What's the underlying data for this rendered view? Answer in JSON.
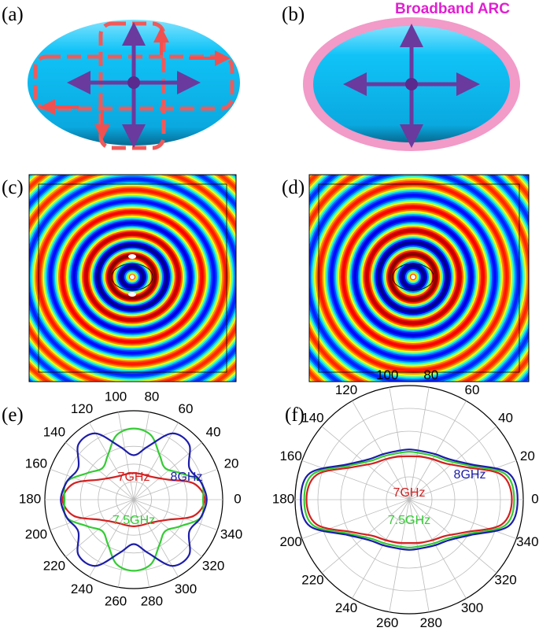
{
  "labels": [
    "(a)",
    "(b)",
    "(c)",
    "(d)",
    "(e)",
    "(f)"
  ],
  "annotation": "Broadband ARC",
  "chart_data": [
    {
      "type": "polar",
      "rlim": [
        0,
        1
      ],
      "rticks": [
        0.2,
        0.4,
        0.6,
        0.8,
        1
      ],
      "xticks": [
        0,
        20,
        40,
        60,
        80,
        100,
        120,
        140,
        160,
        180,
        200,
        220,
        240,
        260,
        280,
        300,
        320,
        340
      ],
      "x": [
        0,
        15,
        30,
        45,
        60,
        75,
        90,
        105,
        120,
        135,
        150,
        165,
        180,
        195,
        210,
        225,
        240,
        255,
        270,
        285,
        300,
        315,
        330,
        345
      ],
      "series": [
        {
          "name": "7GHz",
          "color": "#d42020",
          "values": [
            0.8,
            0.7,
            0.45,
            0.35,
            0.31,
            0.3,
            0.3,
            0.3,
            0.31,
            0.35,
            0.45,
            0.7,
            0.8,
            0.7,
            0.45,
            0.35,
            0.31,
            0.3,
            0.3,
            0.3,
            0.31,
            0.35,
            0.45,
            0.7
          ]
        },
        {
          "name": "7.5GHz",
          "color": "#33cc33",
          "values": [
            0.78,
            0.78,
            0.6,
            0.5,
            0.58,
            0.75,
            0.8,
            0.75,
            0.58,
            0.5,
            0.6,
            0.78,
            0.78,
            0.78,
            0.6,
            0.5,
            0.58,
            0.75,
            0.8,
            0.75,
            0.58,
            0.5,
            0.6,
            0.78
          ]
        },
        {
          "name": "8GHz",
          "color": "#1c1caa",
          "values": [
            0.82,
            0.78,
            0.72,
            0.88,
            0.86,
            0.62,
            0.5,
            0.62,
            0.86,
            0.88,
            0.72,
            0.78,
            0.82,
            0.78,
            0.72,
            0.88,
            0.86,
            0.62,
            0.5,
            0.62,
            0.86,
            0.88,
            0.72,
            0.78
          ]
        }
      ]
    },
    {
      "type": "polar",
      "rlim": [
        0,
        1
      ],
      "rticks": [
        0.2,
        0.4,
        0.6,
        0.8,
        1
      ],
      "xticks": [
        0,
        20,
        40,
        60,
        80,
        100,
        120,
        140,
        160,
        180,
        200,
        220,
        240,
        260,
        280,
        300,
        320,
        340
      ],
      "x": [
        0,
        15,
        30,
        45,
        60,
        75,
        90,
        105,
        120,
        135,
        150,
        165,
        180,
        195,
        210,
        225,
        240,
        255,
        270,
        285,
        300,
        315,
        330,
        345
      ],
      "series": [
        {
          "name": "7GHz",
          "color": "#d42020",
          "values": [
            0.9,
            0.84,
            0.57,
            0.45,
            0.41,
            0.39,
            0.38,
            0.39,
            0.41,
            0.45,
            0.57,
            0.84,
            0.9,
            0.84,
            0.57,
            0.45,
            0.41,
            0.39,
            0.38,
            0.39,
            0.41,
            0.45,
            0.57,
            0.84
          ]
        },
        {
          "name": "7.5GHz",
          "color": "#33cc33",
          "values": [
            0.92,
            0.87,
            0.6,
            0.48,
            0.44,
            0.42,
            0.42,
            0.42,
            0.44,
            0.48,
            0.6,
            0.87,
            0.92,
            0.87,
            0.6,
            0.48,
            0.44,
            0.42,
            0.42,
            0.42,
            0.44,
            0.48,
            0.6,
            0.87
          ]
        },
        {
          "name": "8GHz",
          "color": "#1c1caa",
          "values": [
            0.95,
            0.9,
            0.62,
            0.5,
            0.46,
            0.44,
            0.44,
            0.44,
            0.46,
            0.5,
            0.62,
            0.9,
            0.95,
            0.9,
            0.62,
            0.5,
            0.46,
            0.44,
            0.44,
            0.44,
            0.46,
            0.5,
            0.62,
            0.9
          ]
        }
      ]
    }
  ]
}
